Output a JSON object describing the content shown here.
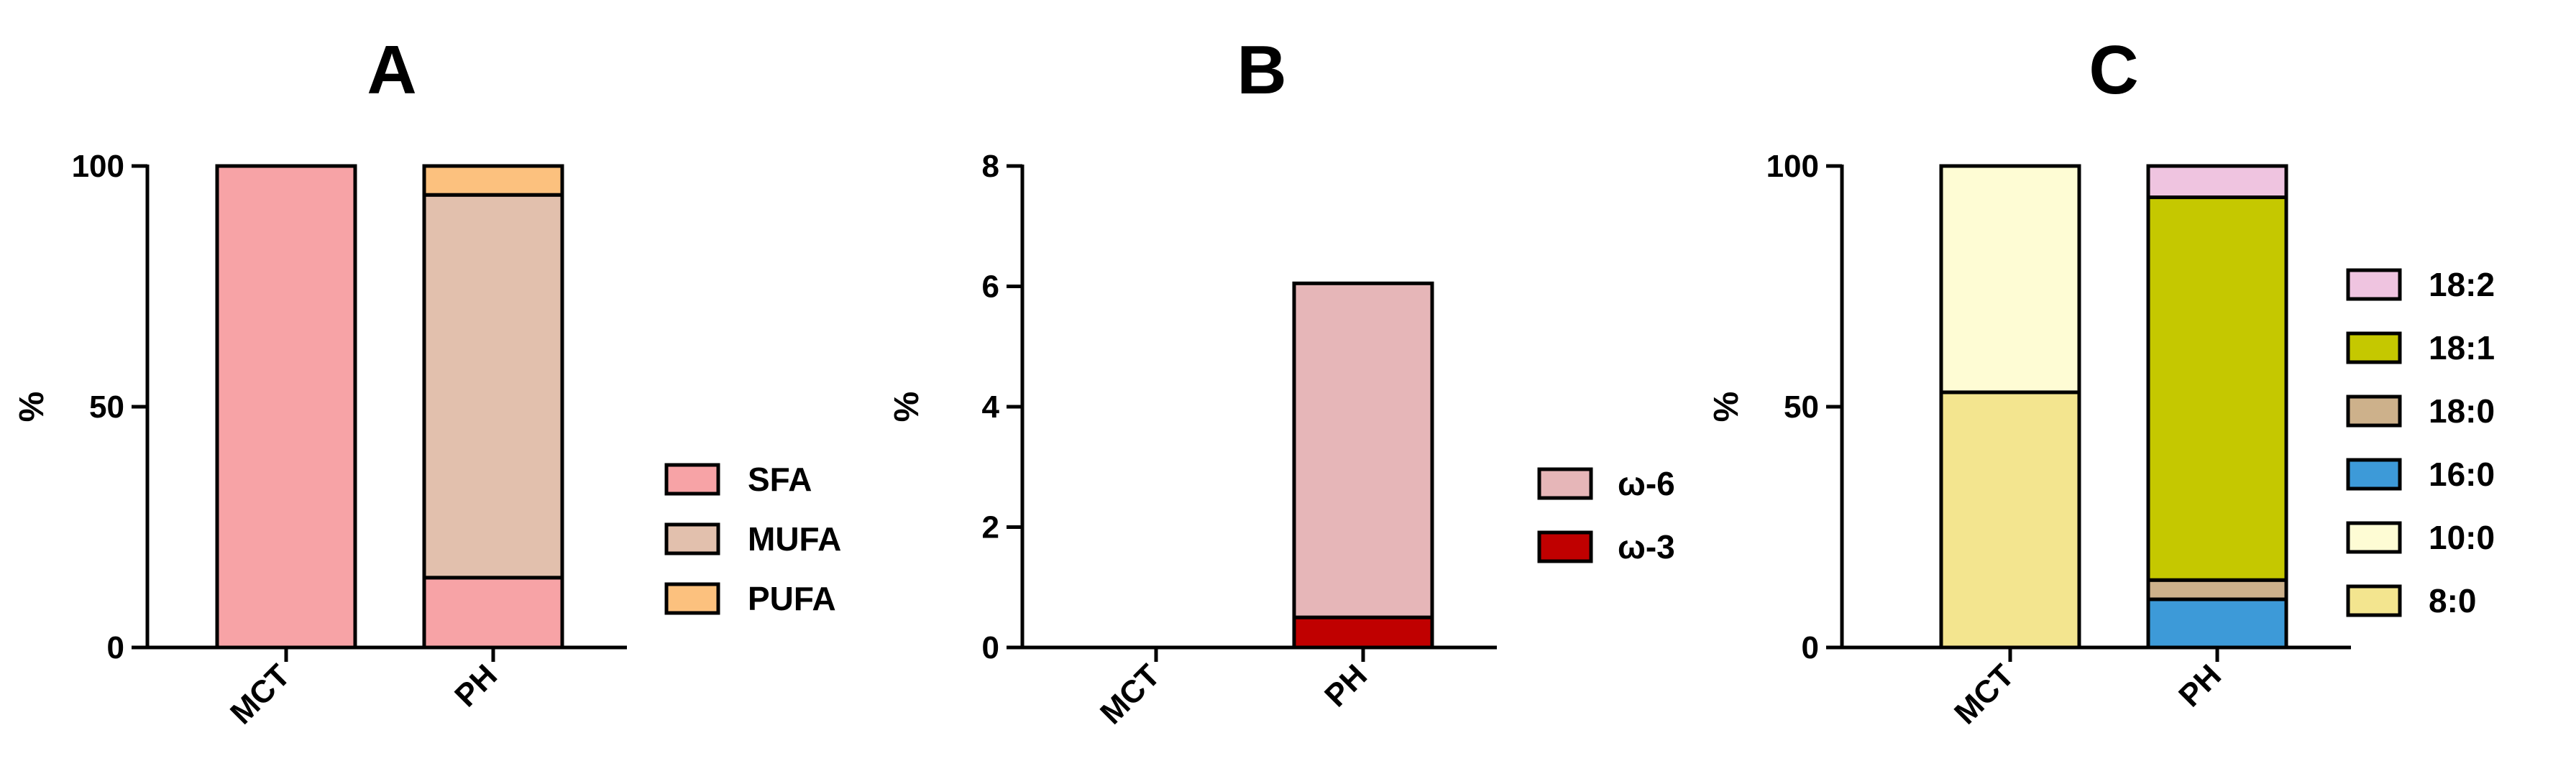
{
  "chart_data": [
    {
      "type": "bar",
      "stacked": true,
      "title": "A",
      "ylabel": "%",
      "ylim": [
        0,
        100
      ],
      "yticks": [
        "0",
        "50",
        "100"
      ],
      "categories": [
        "MCT",
        "PH"
      ],
      "series": [
        {
          "name": "SFA",
          "color": "#f7a3a6",
          "values": [
            100,
            14.5
          ]
        },
        {
          "name": "MUFA",
          "color": "#e2c0ad",
          "values": [
            0,
            79.5
          ]
        },
        {
          "name": "PUFA",
          "color": "#fcc17e",
          "values": [
            0,
            6
          ]
        }
      ],
      "legend": "right"
    },
    {
      "type": "bar",
      "stacked": true,
      "title": "B",
      "ylabel": "%",
      "ylim": [
        0,
        8
      ],
      "yticks": [
        "0",
        "2",
        "4",
        "6",
        "8"
      ],
      "categories": [
        "MCT",
        "PH"
      ],
      "series": [
        {
          "name": "ω-3",
          "color": "#c00000",
          "values": [
            0,
            0.5
          ]
        },
        {
          "name": "ω-6",
          "color": "#e6b6b8",
          "values": [
            0,
            5.55
          ]
        }
      ],
      "legend": "right"
    },
    {
      "type": "bar",
      "stacked": true,
      "title": "C",
      "ylabel": "%",
      "ylim": [
        0,
        100
      ],
      "yticks": [
        "0",
        "50",
        "100"
      ],
      "categories": [
        "MCT",
        "PH"
      ],
      "series": [
        {
          "name": "8:0",
          "color": "#f3e58f",
          "values": [
            53,
            0
          ]
        },
        {
          "name": "10:0",
          "color": "#fefcd4",
          "values": [
            47,
            0
          ]
        },
        {
          "name": "16:0",
          "color": "#3d9ad8",
          "values": [
            0,
            10
          ]
        },
        {
          "name": "18:0",
          "color": "#cdb18b",
          "values": [
            0,
            4
          ]
        },
        {
          "name": "18:1",
          "color": "#c5c800",
          "values": [
            0,
            79.5
          ]
        },
        {
          "name": "18:2",
          "color": "#efc4e0",
          "values": [
            0,
            6.5
          ]
        }
      ],
      "legend": "right"
    }
  ]
}
